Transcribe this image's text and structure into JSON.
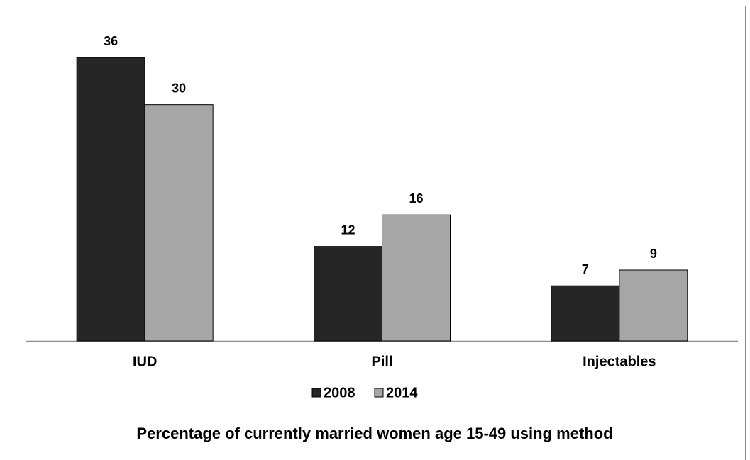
{
  "chart_data": {
    "type": "bar",
    "title": "Percentage of currently married women age 15-49 using method",
    "categories": [
      "IUD",
      "Pill",
      "Injectables"
    ],
    "series": [
      {
        "name": "2008",
        "color": "#262626",
        "values": [
          36,
          12,
          7
        ]
      },
      {
        "name": "2014",
        "color": "#a6a6a6",
        "values": [
          30,
          16,
          9
        ]
      }
    ],
    "legend": "bottom"
  }
}
